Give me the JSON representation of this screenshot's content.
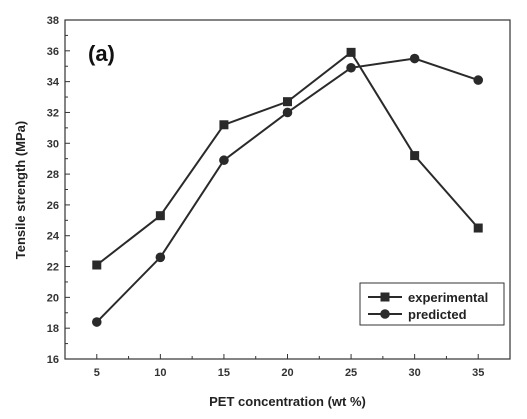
{
  "chart_data": {
    "type": "line",
    "panel_label": "(a)",
    "xlabel": "PET concentration (wt %)",
    "ylabel": "Tensile strength (MPa)",
    "xlim": [
      2.5,
      37.5
    ],
    "ylim": [
      16,
      38
    ],
    "x_ticks": [
      5,
      10,
      15,
      20,
      25,
      30,
      35
    ],
    "y_ticks": [
      16,
      18,
      20,
      22,
      24,
      26,
      28,
      30,
      32,
      34,
      36,
      38
    ],
    "grid": false,
    "legend_position": "bottom-right",
    "x": [
      5,
      10,
      15,
      20,
      25,
      30,
      35
    ],
    "series": [
      {
        "name": "experimental",
        "marker": "square",
        "color": "#2a2a2a",
        "values": [
          22.1,
          25.3,
          31.2,
          32.7,
          35.9,
          29.2,
          24.5
        ]
      },
      {
        "name": "predicted",
        "marker": "circle",
        "color": "#2a2a2a",
        "values": [
          18.4,
          22.6,
          28.9,
          32.0,
          34.9,
          35.5,
          34.1
        ]
      }
    ]
  }
}
